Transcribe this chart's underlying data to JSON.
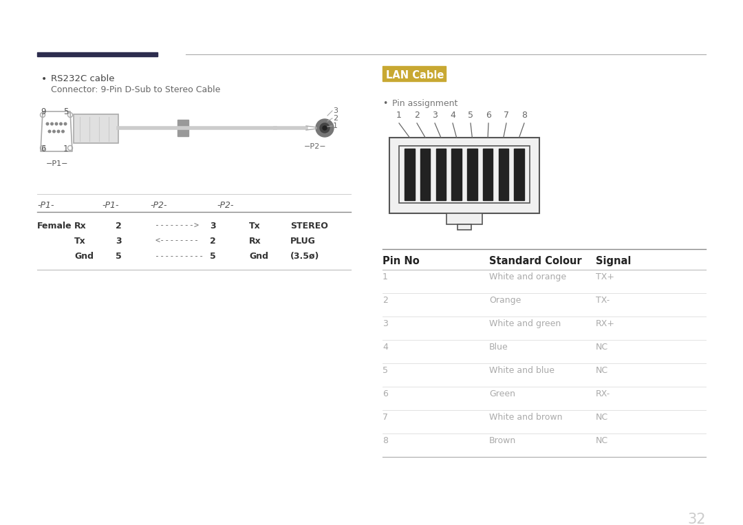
{
  "bg_color": "#ffffff",
  "page_number": "32",
  "left_section": {
    "header_bar_color": "#2d2d4e",
    "bullet_text": "RS232C cable",
    "bullet_sub": "Connector: 9-Pin D-Sub to Stereo Cable",
    "table_headers_x": [
      54,
      155,
      220,
      320,
      390
    ],
    "table_headers": [
      "-P1-",
      "-P1-",
      "-P2-",
      "-P2-"
    ],
    "table_col2": [
      "Rx",
      "Tx",
      "Gnd"
    ],
    "table_col3": [
      "2",
      "3",
      "5"
    ],
    "table_col4": [
      "-------->",
      "<--------",
      "----------"
    ],
    "table_col5": [
      "3",
      "2",
      "5"
    ],
    "table_col6": [
      "Tx",
      "Rx",
      "Gnd"
    ],
    "table_col7": [
      "STEREO",
      "PLUG",
      "(3.5ø)"
    ]
  },
  "right_section": {
    "lan_label": "LAN Cable",
    "lan_label_bg": "#c8a832",
    "lan_label_color": "#ffffff",
    "bullet_text": "Pin assignment",
    "pin_numbers": [
      "1",
      "2",
      "3",
      "4",
      "5",
      "6",
      "7",
      "8"
    ],
    "table_header_pin": "Pin No",
    "table_header_colour": "Standard Colour",
    "table_header_signal": "Signal",
    "table_data": [
      [
        "1",
        "White and orange",
        "TX+"
      ],
      [
        "2",
        "Orange",
        "TX-"
      ],
      [
        "3",
        "White and green",
        "RX+"
      ],
      [
        "4",
        "Blue",
        "NC"
      ],
      [
        "5",
        "White and blue",
        "NC"
      ],
      [
        "6",
        "Green",
        "RX-"
      ],
      [
        "7",
        "White and brown",
        "NC"
      ],
      [
        "8",
        "Brown",
        "NC"
      ]
    ]
  }
}
